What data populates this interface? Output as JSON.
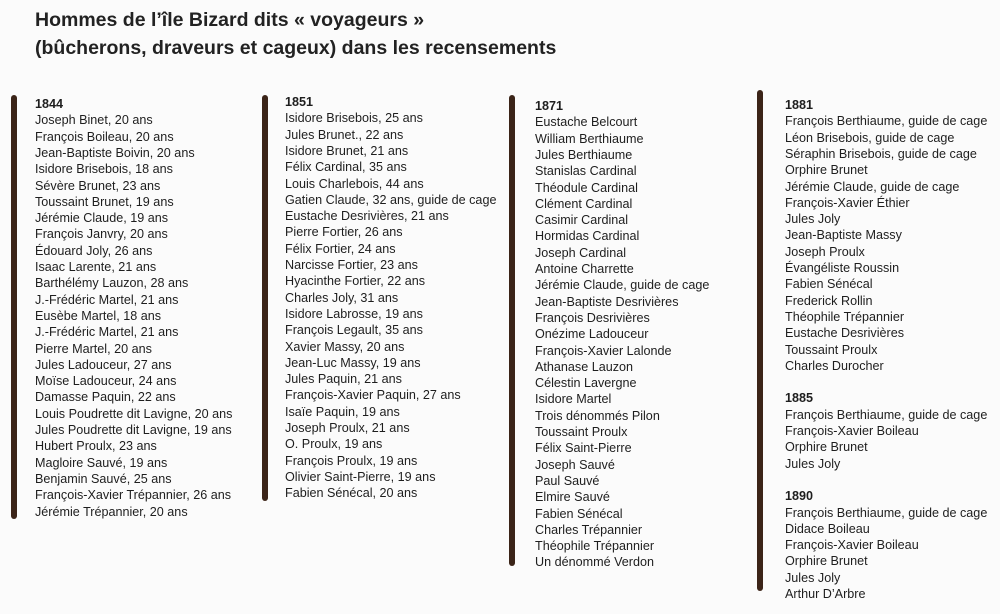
{
  "title": [
    "Hommes de l’île Bizard dits « voyageurs »",
    "(bûcherons, draveurs et cageux) dans les recensements"
  ],
  "columns": [
    {
      "sections": [
        {
          "year": "1844",
          "names": [
            "Joseph Binet, 20 ans",
            "François Boileau, 20 ans",
            "Jean-Baptiste Boivin, 20 ans",
            "Isidore Brisebois, 18 ans",
            "Sévère Brunet, 23 ans",
            "Toussaint Brunet, 19 ans",
            "Jérémie Claude, 19 ans",
            "François Janvry, 20 ans",
            "Édouard Joly, 26 ans",
            "Isaac Larente, 21 ans",
            "Barthélémy Lauzon, 28 ans",
            "J.-Frédéric Martel, 21 ans",
            "Eusèbe Martel, 18 ans",
            "J.-Frédéric Martel, 21 ans",
            "Pierre Martel, 20 ans",
            "Jules Ladouceur, 27 ans",
            "Moïse Ladouceur, 24 ans",
            "Damasse Paquin, 22 ans",
            "Louis Poudrette dit Lavigne, 20 ans",
            "Jules Poudrette dit Lavigne, 19 ans",
            "Hubert Proulx, 23 ans",
            "Magloire Sauvé, 19 ans",
            "Benjamin Sauvé, 25 ans",
            "François-Xavier Trépannier, 26 ans",
            "Jérémie Trépannier, 20 ans"
          ]
        }
      ]
    },
    {
      "sections": [
        {
          "year": "1851",
          "names": [
            "Isidore Brisebois, 25 ans",
            "Jules Brunet., 22 ans",
            "Isidore Brunet, 21 ans",
            "Félix Cardinal, 35 ans",
            "Louis Charlebois, 44 ans",
            "Gatien Claude, 32 ans, guide de cage",
            "Eustache Desrivières, 21 ans",
            "Pierre Fortier, 26 ans",
            "Félix Fortier, 24 ans",
            "Narcisse Fortier, 23 ans",
            "Hyacinthe Fortier, 22 ans",
            "Charles Joly, 31 ans",
            "Isidore Labrosse, 19 ans",
            "François Legault, 35 ans",
            "Xavier Massy, 20 ans",
            "Jean-Luc Massy, 19 ans",
            "Jules Paquin, 21 ans",
            "François-Xavier Paquin, 27 ans",
            "Isaïe Paquin, 19 ans",
            "Joseph Proulx, 21 ans",
            "O. Proulx, 19 ans",
            "François Proulx, 19 ans",
            "Olivier Saint-Pierre, 19 ans",
            "Fabien Sénécal, 20 ans"
          ]
        }
      ]
    },
    {
      "sections": [
        {
          "year": "1871",
          "names": [
            "Eustache Belcourt",
            "William Berthiaume",
            "Jules Berthiaume",
            "Stanislas Cardinal",
            "Théodule Cardinal",
            "Clément Cardinal",
            "Casimir Cardinal",
            "Hormidas Cardinal",
            "Joseph Cardinal",
            "Antoine Charrette",
            "Jérémie Claude, guide de cage",
            "Jean-Baptiste Desrivières",
            "François Desrivières",
            "Onézime Ladouceur",
            "François-Xavier Lalonde",
            "Athanase Lauzon",
            "Célestin Lavergne",
            "Isidore Martel",
            "Trois dénommés Pilon",
            "Toussaint Proulx",
            "Félix Saint-Pierre",
            "Joseph Sauvé",
            "Paul Sauvé",
            "Elmire Sauvé",
            "Fabien Sénécal",
            "Charles Trépannier",
            "Théophile Trépannier",
            "Un dénommé Verdon"
          ]
        }
      ]
    },
    {
      "sections": [
        {
          "year": "1881",
          "names": [
            "François Berthiaume, guide de cage",
            "Léon Brisebois, guide de cage",
            "Séraphin Brisebois, guide de cage",
            "Orphire Brunet",
            "Jérémie Claude, guide de cage",
            "François-Xavier Éthier",
            "Jules Joly",
            "Jean-Baptiste Massy",
            "Joseph Proulx",
            "Évangéliste Roussin",
            "Fabien Sénécal",
            "Frederick Rollin",
            "Théophile Trépannier",
            "Eustache Desrivières",
            "Toussaint Proulx",
            "Charles Durocher"
          ]
        },
        {
          "year": "1885",
          "names": [
            "François Berthiaume, guide de cage",
            "François-Xavier Boileau",
            "Orphire Brunet",
            "Jules Joly"
          ]
        },
        {
          "year": "1890",
          "names": [
            "François Berthiaume, guide de cage",
            "Didace Boileau",
            "François-Xavier Boileau",
            "Orphire Brunet",
            "Jules Joly",
            "Arthur D’Arbre"
          ]
        }
      ]
    }
  ]
}
